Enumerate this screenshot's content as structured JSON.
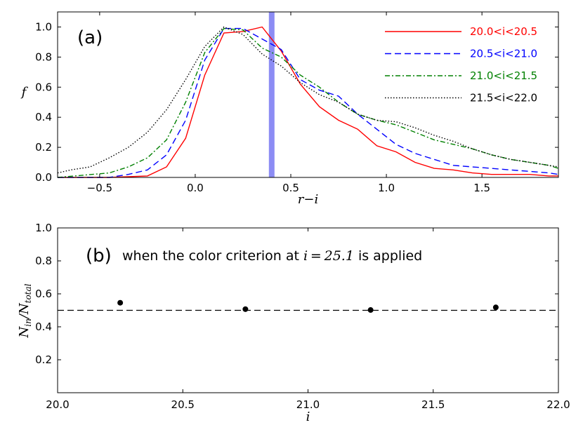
{
  "chart_data": [
    {
      "type": "line",
      "panel_label": "(a)",
      "xlabel": "r−i",
      "ylabel": "f",
      "xlim": [
        -0.72,
        1.9
      ],
      "ylim": [
        0,
        1.1
      ],
      "xticks": [
        -0.5,
        0.0,
        0.5,
        1.0,
        1.5
      ],
      "xtick_labels": [
        "−0.5",
        "0.0",
        "0.5",
        "1.0",
        "1.5"
      ],
      "yticks": [
        0.0,
        0.2,
        0.4,
        0.6,
        0.8,
        1.0
      ],
      "ytick_labels": [
        "0.0",
        "0.2",
        "0.4",
        "0.6",
        "0.8",
        "1.0"
      ],
      "vline": {
        "x": 0.4,
        "color": "#8c8cf4"
      },
      "legend_position": "top-right",
      "series": [
        {
          "name": "20.0<i<20.5",
          "color": "#ff0000",
          "style": "solid",
          "x": [
            -0.72,
            -0.45,
            -0.25,
            -0.15,
            -0.05,
            0.05,
            0.15,
            0.25,
            0.35,
            0.45,
            0.55,
            0.65,
            0.75,
            0.85,
            0.95,
            1.05,
            1.15,
            1.25,
            1.35,
            1.45,
            1.55,
            1.65,
            1.75,
            1.85,
            1.9
          ],
          "y": [
            0.0,
            0.0,
            0.01,
            0.07,
            0.26,
            0.68,
            0.96,
            0.97,
            1.0,
            0.84,
            0.62,
            0.47,
            0.38,
            0.32,
            0.21,
            0.17,
            0.1,
            0.06,
            0.05,
            0.03,
            0.02,
            0.02,
            0.02,
            0.01,
            0.01
          ]
        },
        {
          "name": "20.5<i<21.0",
          "color": "#0000ff",
          "style": "dashed",
          "x": [
            -0.72,
            -0.45,
            -0.35,
            -0.25,
            -0.15,
            -0.05,
            0.05,
            0.15,
            0.25,
            0.35,
            0.45,
            0.55,
            0.65,
            0.75,
            0.85,
            0.95,
            1.05,
            1.15,
            1.25,
            1.35,
            1.45,
            1.55,
            1.65,
            1.75,
            1.85,
            1.9
          ],
          "y": [
            0.0,
            0.0,
            0.02,
            0.05,
            0.15,
            0.38,
            0.78,
            0.99,
            0.99,
            0.92,
            0.85,
            0.65,
            0.58,
            0.54,
            0.42,
            0.32,
            0.22,
            0.16,
            0.12,
            0.08,
            0.07,
            0.06,
            0.05,
            0.04,
            0.03,
            0.02
          ]
        },
        {
          "name": "21.0<i<21.5",
          "color": "#008000",
          "style": "dashdot",
          "x": [
            -0.72,
            -0.45,
            -0.35,
            -0.25,
            -0.15,
            -0.05,
            0.05,
            0.15,
            0.25,
            0.35,
            0.45,
            0.55,
            0.65,
            0.75,
            0.85,
            0.95,
            1.05,
            1.15,
            1.25,
            1.35,
            1.45,
            1.55,
            1.65,
            1.75,
            1.85,
            1.9
          ],
          "y": [
            0.0,
            0.03,
            0.07,
            0.13,
            0.25,
            0.5,
            0.83,
            0.99,
            0.98,
            0.86,
            0.8,
            0.68,
            0.6,
            0.5,
            0.42,
            0.38,
            0.35,
            0.3,
            0.25,
            0.22,
            0.19,
            0.15,
            0.12,
            0.1,
            0.08,
            0.06
          ]
        },
        {
          "name": "21.5<i<22.0",
          "color": "#000000",
          "style": "dotted",
          "x": [
            -0.72,
            -0.65,
            -0.55,
            -0.45,
            -0.35,
            -0.25,
            -0.15,
            -0.05,
            0.05,
            0.15,
            0.25,
            0.35,
            0.45,
            0.55,
            0.65,
            0.75,
            0.85,
            0.95,
            1.05,
            1.15,
            1.25,
            1.35,
            1.45,
            1.55,
            1.65,
            1.75,
            1.85,
            1.9
          ],
          "y": [
            0.03,
            0.05,
            0.07,
            0.13,
            0.2,
            0.3,
            0.45,
            0.65,
            0.87,
            1.0,
            0.95,
            0.82,
            0.74,
            0.63,
            0.55,
            0.5,
            0.42,
            0.38,
            0.37,
            0.33,
            0.28,
            0.24,
            0.19,
            0.15,
            0.12,
            0.1,
            0.08,
            0.07
          ]
        }
      ]
    },
    {
      "type": "scatter",
      "panel_label": "(b)",
      "annotation_prefix": "when the color criterion at ",
      "annotation_math": "i = 25.1",
      "annotation_suffix": " is applied",
      "xlabel": "i",
      "ylabel": "N_in / N_total",
      "xlim": [
        20.0,
        22.0
      ],
      "ylim": [
        0.0,
        1.0
      ],
      "xticks": [
        20.0,
        20.5,
        21.0,
        21.5,
        22.0
      ],
      "xtick_labels": [
        "20.0",
        "20.5",
        "21.0",
        "21.5",
        "22.0"
      ],
      "yticks": [
        0.2,
        0.4,
        0.6,
        0.8,
        1.0
      ],
      "ytick_labels": [
        "0.2",
        "0.4",
        "0.6",
        "0.8",
        "1.0"
      ],
      "hline": {
        "y": 0.5,
        "style": "dashed"
      },
      "points": {
        "x": [
          20.25,
          20.75,
          21.25,
          21.75
        ],
        "y": [
          0.546,
          0.507,
          0.502,
          0.518
        ]
      }
    }
  ]
}
